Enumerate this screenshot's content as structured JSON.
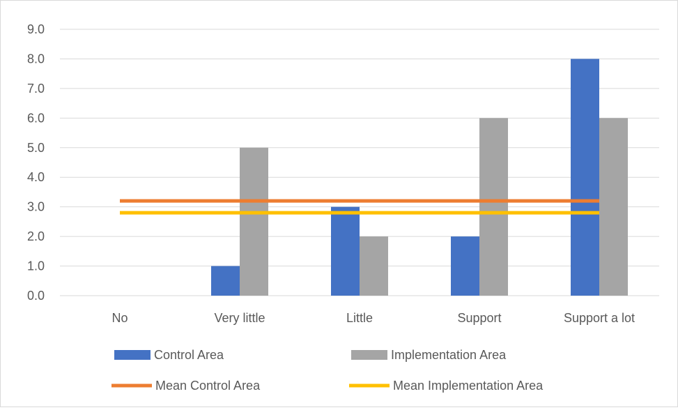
{
  "chart_data": {
    "type": "bar",
    "categories": [
      "No",
      "Very little",
      "Little",
      "Support",
      "Support a lot"
    ],
    "series": [
      {
        "name": "Control Area",
        "values": [
          0,
          1,
          3,
          2,
          8
        ],
        "color": "#4472c4"
      },
      {
        "name": "Implementation Area",
        "values": [
          0,
          5,
          2,
          6,
          6
        ],
        "color": "#a5a5a5"
      }
    ],
    "means": [
      {
        "name": "Mean Control Area",
        "value": 3.2,
        "color": "#ed7d31"
      },
      {
        "name": "Mean Implementation Area",
        "value": 2.8,
        "color": "#ffc000"
      }
    ],
    "ylim": [
      0,
      9
    ],
    "yticks": [
      "0.0",
      "1.0",
      "2.0",
      "3.0",
      "4.0",
      "5.0",
      "6.0",
      "7.0",
      "8.0",
      "9.0"
    ],
    "grid": true,
    "legend": "bottom",
    "title": "",
    "xlabel": "",
    "ylabel": ""
  }
}
